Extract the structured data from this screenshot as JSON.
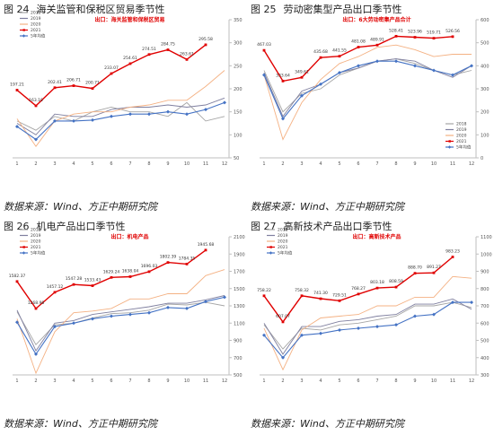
{
  "colors": {
    "2018": "#a5a5a5",
    "2019": "#7f7f9f",
    "2020": "#f4b183",
    "2021": "#e00000",
    "avg": "#4472c4",
    "note": "#e00000",
    "axis": "#bfbfbf"
  },
  "panels": [
    {
      "fig_label": "图 24",
      "fig_title": "海关监管和保税区贸易季节性",
      "note": "出口：海关监管和保税区贸易",
      "source": "数据来源：Wind、方正中期研究院",
      "chart_data": {
        "type": "line",
        "title": "海关监管和保税区贸易季节性",
        "x": [
          1,
          2,
          3,
          4,
          5,
          6,
          7,
          8,
          9,
          10,
          11,
          12
        ],
        "xticks": [
          "1",
          "2",
          "3",
          "4",
          "5",
          "6",
          "7",
          "8",
          "9",
          "10",
          "11",
          "12"
        ],
        "ylim": [
          50,
          350
        ],
        "yticks": [
          "50",
          "100",
          "150",
          "200",
          "250",
          "300",
          "350"
        ],
        "yaxis_side": "right",
        "legend": [
          "2018",
          "2019",
          "2020",
          "2021",
          "5年均值"
        ],
        "legend_position": "top-left",
        "series": [
          {
            "name": "2018",
            "values": [
              130,
              110,
              140,
              130,
              150,
              160,
              150,
              150,
              140,
              170,
              130,
              140
            ]
          },
          {
            "name": "2019",
            "values": [
              125,
              100,
              145,
              140,
              140,
              155,
              160,
              160,
              165,
              160,
              165,
              180
            ]
          },
          {
            "name": "2020",
            "values": [
              135,
              75,
              130,
              145,
              150,
              150,
              160,
              165,
              175,
              175,
              205,
              240
            ]
          },
          {
            "name": "2021",
            "values": [
              197.21,
              163.1,
              202.41,
              206.71,
              200.71,
              233.07,
              254.61,
              274.51,
              284.75,
              263.61,
              295.58,
              null
            ],
            "labels": [
              "197.21",
              "163.10",
              "202.41",
              "206.71",
              "200.71",
              "233.07",
              "254.61",
              "274.51",
              "284.75",
              "263.61",
              "295.58",
              ""
            ]
          },
          {
            "name": "5年均值",
            "values": [
              118,
              90,
              130,
              130,
              132,
              140,
              145,
              145,
              150,
              145,
              155,
              170
            ]
          }
        ]
      }
    },
    {
      "fig_label": "图 25",
      "fig_title": "劳动密集型产品出口季节性",
      "note": "出口：6大劳动密集产品合计",
      "source": "数据来源：Wind、方正中期研究院",
      "chart_data": {
        "type": "line",
        "title": "劳动密集型产品出口季节性",
        "x": [
          1,
          2,
          3,
          4,
          5,
          6,
          7,
          8,
          9,
          10,
          11,
          12
        ],
        "xticks": [
          "1",
          "2",
          "3",
          "4",
          "5",
          "6",
          "7",
          "8",
          "9",
          "10",
          "11",
          "12"
        ],
        "ylim": [
          0,
          600
        ],
        "yticks": [
          "0",
          "100",
          "200",
          "300",
          "400",
          "500",
          "600"
        ],
        "yaxis_side": "right",
        "legend": [
          "2018",
          "2019",
          "2020",
          "2021",
          "5年均值"
        ],
        "legend_position": "bottom-right",
        "series": [
          {
            "name": "2018",
            "values": [
              380,
              200,
              280,
              300,
              360,
              390,
              420,
              430,
              410,
              380,
              360,
              380
            ]
          },
          {
            "name": "2019",
            "values": [
              370,
              180,
              290,
              320,
              370,
              390,
              420,
              430,
              420,
              380,
              350,
              400
            ]
          },
          {
            "name": "2020",
            "values": [
              360,
              80,
              240,
              340,
              410,
              440,
              480,
              490,
              470,
              440,
              450,
              450
            ]
          },
          {
            "name": "2021",
            "values": [
              467.03,
              333.64,
              349.61,
              435.68,
              441.55,
              481.08,
              489.91,
              528.41,
              523.96,
              519.71,
              526.56,
              null
            ],
            "labels": [
              "467.03",
              "333.64",
              "349.61",
              "435.68",
              "441.55",
              "481.08",
              "489.91",
              "528.41",
              "523.96",
              "519.71",
              "526.56",
              ""
            ]
          },
          {
            "name": "5年均值",
            "values": [
              360,
              170,
              270,
              320,
              370,
              400,
              420,
              420,
              400,
              380,
              360,
              400
            ]
          }
        ]
      }
    },
    {
      "fig_label": "图 26",
      "fig_title": "机电产品出口季节性",
      "note": "出口：机电产品",
      "source": "数据来源：Wind、方正中期研究院",
      "chart_data": {
        "type": "line",
        "title": "机电产品出口季节性",
        "x": [
          1,
          2,
          3,
          4,
          5,
          6,
          7,
          8,
          9,
          10,
          11,
          12
        ],
        "xticks": [
          "1",
          "2",
          "3",
          "4",
          "5",
          "6",
          "7",
          "8",
          "9",
          "10",
          "11",
          "12"
        ],
        "ylim": [
          500,
          2100
        ],
        "yticks": [
          "500",
          "700",
          "900",
          "1100",
          "1300",
          "1500",
          "1700",
          "1900",
          "2100"
        ],
        "yaxis_side": "right",
        "legend": [
          "2018",
          "2019",
          "2020",
          "2021",
          "5年均值"
        ],
        "legend_position": "top-left",
        "series": [
          {
            "name": "2018",
            "values": [
              1230,
              850,
              1080,
              1100,
              1160,
              1210,
              1220,
              1250,
              1320,
              1310,
              1340,
              1300
            ]
          },
          {
            "name": "2019",
            "values": [
              1250,
              780,
              1100,
              1130,
              1200,
              1230,
              1260,
              1290,
              1330,
              1330,
              1370,
              1420
            ]
          },
          {
            "name": "2020",
            "values": [
              1150,
              520,
              1000,
              1220,
              1240,
              1270,
              1380,
              1380,
              1440,
              1440,
              1650,
              1720
            ]
          },
          {
            "name": "2021",
            "values": [
              1582.37,
              1268.98,
              1457.12,
              1547.28,
              1533.43,
              1629.24,
              1638.04,
              1696.03,
              1802.39,
              1784.35,
              1945.68,
              null
            ],
            "labels": [
              "1582.37",
              "1268.98",
              "1457.12",
              "1547.28",
              "1533.43",
              "1629.24",
              "1638.04",
              "1696.03",
              "1802.39",
              "1784.35",
              "1945.68",
              ""
            ]
          },
          {
            "name": "5年均值",
            "values": [
              1110,
              740,
              1060,
              1100,
              1150,
              1180,
              1200,
              1220,
              1280,
              1270,
              1350,
              1400
            ]
          }
        ]
      }
    },
    {
      "fig_label": "图 27",
      "fig_title": "高新技术产品出口季节性",
      "note": "出口：高新技术产品",
      "source": "数据来源：Wind、方正中期研究院",
      "chart_data": {
        "type": "line",
        "title": "高新技术产品出口季节性",
        "x": [
          1,
          2,
          3,
          4,
          5,
          6,
          7,
          8,
          9,
          10,
          11,
          12
        ],
        "xticks": [
          "1",
          "2",
          "3",
          "4",
          "5",
          "6",
          "7",
          "8",
          "9",
          "10",
          "11",
          "12"
        ],
        "ylim": [
          300,
          1100
        ],
        "yticks": [
          "300",
          "400",
          "500",
          "600",
          "700",
          "800",
          "900",
          "1000",
          "1100"
        ],
        "yaxis_side": "right",
        "legend": [
          "2018",
          "2019",
          "2020",
          "2021",
          "5年均值"
        ],
        "legend_position": "top-left",
        "series": [
          {
            "name": "2018",
            "values": [
              590,
              450,
              570,
              560,
              590,
              600,
              620,
              640,
              700,
              700,
              720,
              690
            ]
          },
          {
            "name": "2019",
            "values": [
              600,
              420,
              580,
              580,
              610,
              620,
              640,
              650,
              710,
              710,
              740,
              680
            ]
          },
          {
            "name": "2020",
            "values": [
              570,
              330,
              560,
              630,
              640,
              650,
              700,
              700,
              750,
              750,
              870,
              860
            ]
          },
          {
            "name": "2021",
            "values": [
              758.22,
              607.07,
              758.32,
              741.3,
              729.51,
              768.27,
              803.18,
              808.59,
              888.7,
              891.27,
              983.23,
              null
            ],
            "labels": [
              "758.22",
              "607.07",
              "758.32",
              "741.30",
              "729.51",
              "768.27",
              "803.18",
              "808.59",
              "888.70",
              "891.27",
              "983.23",
              ""
            ]
          },
          {
            "name": "5年均值",
            "values": [
              530,
              400,
              530,
              540,
              560,
              570,
              580,
              590,
              640,
              650,
              720,
              720
            ]
          }
        ]
      }
    }
  ]
}
